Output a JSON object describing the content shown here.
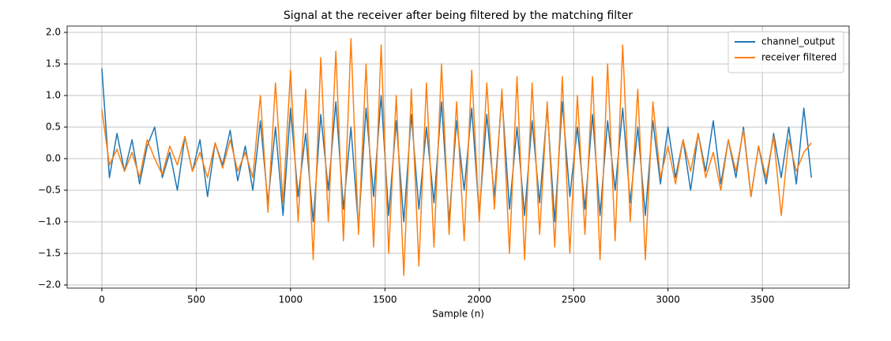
{
  "chart_data": {
    "type": "line",
    "title": "Signal at the receiver after being filtered by the matching filter",
    "xlabel": "Sample (n)",
    "x": [
      0,
      40,
      80,
      120,
      160,
      200,
      240,
      280,
      320,
      360,
      400,
      440,
      480,
      520,
      560,
      600,
      640,
      680,
      720,
      760,
      800,
      840,
      880,
      920,
      960,
      1000,
      1040,
      1080,
      1120,
      1160,
      1200,
      1240,
      1280,
      1320,
      1360,
      1400,
      1440,
      1480,
      1520,
      1560,
      1600,
      1640,
      1680,
      1720,
      1760,
      1800,
      1840,
      1880,
      1920,
      1960,
      2000,
      2040,
      2080,
      2120,
      2160,
      2200,
      2240,
      2280,
      2320,
      2360,
      2400,
      2440,
      2480,
      2520,
      2560,
      2600,
      2640,
      2680,
      2720,
      2760,
      2800,
      2840,
      2880,
      2920,
      2960,
      3000,
      3040,
      3080,
      3120,
      3160,
      3200,
      3240,
      3280,
      3320,
      3360,
      3400,
      3440,
      3480,
      3520,
      3560,
      3600,
      3640,
      3680,
      3720,
      3760
    ],
    "series": [
      {
        "name": "channel_output",
        "color": "#1f77b4",
        "values": [
          1.43,
          -0.3,
          0.4,
          -0.2,
          0.3,
          -0.4,
          0.2,
          0.5,
          -0.3,
          0.1,
          -0.5,
          0.35,
          -0.2,
          0.3,
          -0.6,
          0.25,
          -0.1,
          0.45,
          -0.35,
          0.2,
          -0.5,
          0.6,
          -0.7,
          0.5,
          -0.9,
          0.8,
          -0.6,
          0.4,
          -1.0,
          0.7,
          -0.5,
          0.9,
          -0.8,
          0.5,
          -1.1,
          0.8,
          -0.6,
          1.0,
          -0.9,
          0.6,
          -1.0,
          0.7,
          -0.8,
          0.5,
          -0.7,
          0.9,
          -1.0,
          0.6,
          -0.5,
          0.8,
          -0.9,
          0.7,
          -0.6,
          1.0,
          -0.8,
          0.5,
          -0.9,
          0.6,
          -0.7,
          0.8,
          -1.0,
          0.9,
          -0.6,
          0.5,
          -0.8,
          0.7,
          -0.9,
          0.6,
          -0.5,
          0.8,
          -0.7,
          0.5,
          -0.9,
          0.6,
          -0.4,
          0.5,
          -0.3,
          0.3,
          -0.5,
          0.4,
          -0.2,
          0.6,
          -0.4,
          0.3,
          -0.3,
          0.5,
          -0.6,
          0.2,
          -0.4,
          0.4,
          -0.3,
          0.5,
          -0.4,
          0.8,
          -0.3
        ]
      },
      {
        "name": "receiver filtered",
        "color": "#ff7f0e",
        "values": [
          0.78,
          -0.1,
          0.15,
          -0.2,
          0.1,
          -0.3,
          0.3,
          0.0,
          -0.25,
          0.2,
          -0.1,
          0.35,
          -0.2,
          0.1,
          -0.3,
          0.25,
          -0.15,
          0.3,
          -0.2,
          0.1,
          -0.3,
          1.0,
          -0.85,
          1.2,
          -0.7,
          1.4,
          -1.0,
          1.1,
          -1.6,
          1.6,
          -1.0,
          1.7,
          -1.3,
          1.9,
          -1.2,
          1.5,
          -1.4,
          1.8,
          -1.5,
          1.0,
          -1.85,
          1.1,
          -1.7,
          1.2,
          -1.4,
          1.5,
          -1.2,
          0.9,
          -1.3,
          1.4,
          -1.0,
          1.2,
          -0.8,
          1.1,
          -1.5,
          1.3,
          -1.6,
          1.2,
          -1.2,
          0.9,
          -1.4,
          1.3,
          -1.5,
          1.0,
          -1.2,
          1.3,
          -1.6,
          1.5,
          -1.3,
          1.8,
          -1.0,
          1.1,
          -1.6,
          0.9,
          -0.3,
          0.2,
          -0.4,
          0.3,
          -0.2,
          0.4,
          -0.3,
          0.1,
          -0.5,
          0.3,
          -0.2,
          0.45,
          -0.6,
          0.2,
          -0.3,
          0.35,
          -0.9,
          0.3,
          -0.2,
          0.1,
          0.25
        ]
      }
    ],
    "xlim": [
      -184,
      3960
    ],
    "xticks": [
      0,
      500,
      1000,
      1500,
      2000,
      2500,
      3000,
      3500
    ],
    "ylim": [
      -2.05,
      2.1
    ],
    "yticks": [
      {
        "value": -2.0,
        "label": "−2.0"
      },
      {
        "value": -1.5,
        "label": "−1.5"
      },
      {
        "value": -1.0,
        "label": "−1.0"
      },
      {
        "value": -0.5,
        "label": "−0.5"
      },
      {
        "value": 0.0,
        "label": "0.0"
      },
      {
        "value": 0.5,
        "label": "0.5"
      },
      {
        "value": 1.0,
        "label": "1.0"
      },
      {
        "value": 1.5,
        "label": "1.5"
      },
      {
        "value": 2.0,
        "label": "2.0"
      }
    ],
    "grid": true,
    "legend": "upper right"
  }
}
